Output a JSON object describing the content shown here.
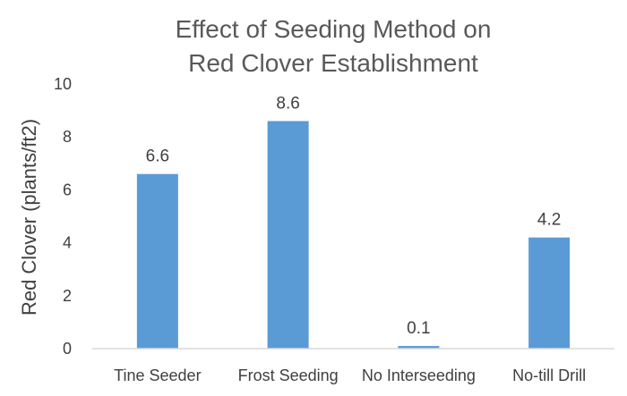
{
  "chart_data": {
    "type": "bar",
    "title_lines": [
      "Effect of Seeding Method on",
      "Red Clover Establishment"
    ],
    "xlabel": "",
    "ylabel": "Red Clover (plants/ft2)",
    "categories": [
      "Tine Seeder",
      "Frost Seeding",
      "No Interseeding",
      "No-till Drill"
    ],
    "values": [
      6.6,
      8.6,
      0.1,
      4.2
    ],
    "data_labels": [
      "6.6",
      "8.6",
      "0.1",
      "4.2"
    ],
    "ylim": [
      0,
      10
    ],
    "yticks": [
      0,
      2,
      4,
      6,
      8,
      10
    ],
    "ytick_labels": [
      "0",
      "2",
      "4",
      "6",
      "8",
      "10"
    ],
    "grid": false,
    "legend": "none",
    "colors": {
      "bar": "#5B9BD5",
      "axis": "#d9d9d9"
    }
  }
}
